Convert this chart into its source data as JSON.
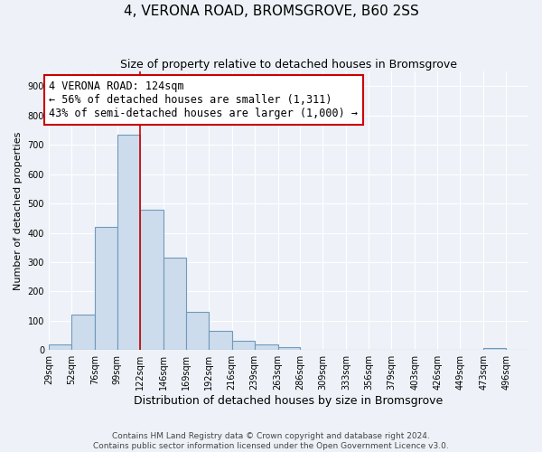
{
  "title": "4, VERONA ROAD, BROMSGROVE, B60 2SS",
  "subtitle": "Size of property relative to detached houses in Bromsgrove",
  "xlabel": "Distribution of detached houses by size in Bromsgrove",
  "ylabel": "Number of detached properties",
  "bin_labels": [
    "29sqm",
    "52sqm",
    "76sqm",
    "99sqm",
    "122sqm",
    "146sqm",
    "169sqm",
    "192sqm",
    "216sqm",
    "239sqm",
    "263sqm",
    "286sqm",
    "309sqm",
    "333sqm",
    "356sqm",
    "379sqm",
    "403sqm",
    "426sqm",
    "449sqm",
    "473sqm",
    "496sqm"
  ],
  "bin_edges": [
    29,
    52,
    76,
    99,
    122,
    146,
    169,
    192,
    216,
    239,
    263,
    286,
    309,
    333,
    356,
    379,
    403,
    426,
    449,
    473,
    496
  ],
  "bar_heights": [
    20,
    120,
    420,
    735,
    480,
    315,
    130,
    65,
    30,
    20,
    10,
    0,
    0,
    0,
    0,
    0,
    0,
    0,
    0,
    8,
    0
  ],
  "bar_color": "#cddcec",
  "bar_edge_color": "#7099bb",
  "bar_edge_width": 0.8,
  "vline_x": 122,
  "vline_color": "#cc0000",
  "annotation_line1": "4 VERONA ROAD: 124sqm",
  "annotation_line2": "← 56% of detached houses are smaller (1,311)",
  "annotation_line3": "43% of semi-detached houses are larger (1,000) →",
  "annotation_box_color": "#ffffff",
  "annotation_box_edge_color": "#cc0000",
  "ylim": [
    0,
    950
  ],
  "yticks": [
    0,
    100,
    200,
    300,
    400,
    500,
    600,
    700,
    800,
    900
  ],
  "background_color": "#eef2f8",
  "grid_color": "#ffffff",
  "footer": "Contains HM Land Registry data © Crown copyright and database right 2024.\nContains public sector information licensed under the Open Government Licence v3.0.",
  "title_fontsize": 11,
  "subtitle_fontsize": 9,
  "xlabel_fontsize": 9,
  "ylabel_fontsize": 8,
  "tick_fontsize": 7,
  "annotation_fontsize": 8.5,
  "footer_fontsize": 6.5
}
